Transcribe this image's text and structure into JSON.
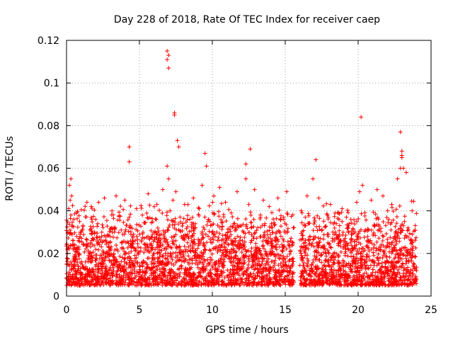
{
  "chart_data": {
    "type": "scatter",
    "title": "Day 228 of 2018, Rate Of TEC Index for receiver caep",
    "xlabel": "GPS time / hours",
    "ylabel": "ROTI / TECUs",
    "xlim": [
      0,
      25
    ],
    "ylim": [
      0,
      0.12
    ],
    "x_ticks": [
      0,
      5,
      10,
      15,
      20,
      25
    ],
    "x_tick_labels": [
      "0",
      "5",
      "10",
      "15",
      "20",
      "25"
    ],
    "y_ticks": [
      0,
      0.02,
      0.04,
      0.06,
      0.08,
      0.1,
      0.12
    ],
    "y_tick_labels": [
      "0",
      "0.02",
      "0.04",
      "0.06",
      "0.08",
      "0.1",
      "0.12"
    ],
    "grid": true,
    "marker": "+",
    "colors": {
      "points": "#ff0000",
      "grid": "#a0a0a0",
      "axis": "#000000"
    },
    "series": [
      {
        "name": "ROTI",
        "description_bands": [
          {
            "x_range": [
              0,
              15.6
            ],
            "typical_y": [
              0.005,
              0.045
            ]
          },
          {
            "x_range": [
              16.0,
              24.0
            ],
            "typical_y": [
              0.005,
              0.045
            ]
          }
        ],
        "x": [
          0.0,
          0.05,
          0.1,
          0.15,
          0.2,
          0.25,
          0.3,
          0.35,
          0.4,
          0.45,
          0.5,
          0.6,
          0.7,
          0.8,
          0.9,
          1.0,
          1.1,
          1.2,
          1.3,
          1.4,
          1.5,
          1.6,
          1.7,
          1.8,
          1.9,
          2.0,
          2.2,
          2.4,
          2.6,
          2.8,
          3.0,
          3.2,
          3.4,
          3.6,
          3.8,
          4.0,
          4.2,
          4.3,
          4.4,
          4.6,
          4.8,
          5.0,
          5.2,
          5.4,
          5.6,
          5.8,
          6.0,
          6.2,
          6.4,
          6.6,
          6.8,
          6.9,
          7.0,
          7.1,
          7.3,
          7.4,
          7.5,
          7.7,
          7.9,
          8.1,
          8.3,
          8.5,
          8.7,
          8.9,
          9.1,
          9.3,
          9.5,
          9.7,
          9.9,
          10.1,
          10.3,
          10.5,
          10.7,
          10.9,
          11.1,
          11.3,
          11.5,
          11.7,
          11.9,
          12.1,
          12.3,
          12.5,
          12.7,
          12.9,
          13.1,
          13.3,
          13.5,
          13.7,
          13.9,
          14.1,
          14.3,
          14.5,
          14.7,
          14.9,
          15.1,
          15.3,
          15.5,
          16.1,
          16.3,
          16.5,
          16.7,
          16.9,
          17.1,
          17.3,
          17.5,
          17.7,
          17.9,
          18.1,
          18.3,
          18.5,
          18.7,
          18.9,
          19.1,
          19.3,
          19.5,
          19.7,
          19.9,
          20.1,
          20.2,
          20.3,
          20.5,
          20.7,
          20.9,
          21.1,
          21.3,
          21.5,
          21.7,
          21.9,
          22.1,
          22.3,
          22.5,
          22.7,
          22.9,
          23.0,
          23.1,
          23.3,
          23.5,
          23.7,
          23.9,
          4.3,
          4.3,
          6.9,
          6.9,
          7.0,
          7.0,
          7.4,
          7.4,
          7.7,
          7.6,
          9.5,
          9.6,
          12.6,
          12.3,
          17.1,
          20.2,
          22.9,
          23.0,
          23.0,
          23.1,
          0.3,
          0.9,
          2.1,
          3.5,
          5.9,
          6.7,
          8.4,
          10.4,
          11.8,
          13.9,
          14.8,
          17.0,
          18.8,
          20.5,
          21.4,
          22.6,
          23.6
        ],
        "y": [
          0.015,
          0.022,
          0.03,
          0.041,
          0.052,
          0.045,
          0.038,
          0.047,
          0.033,
          0.026,
          0.036,
          0.021,
          0.028,
          0.012,
          0.035,
          0.03,
          0.008,
          0.024,
          0.016,
          0.044,
          0.019,
          0.01,
          0.042,
          0.027,
          0.009,
          0.036,
          0.044,
          0.013,
          0.046,
          0.02,
          0.007,
          0.032,
          0.047,
          0.015,
          0.025,
          0.045,
          0.018,
          0.037,
          0.011,
          0.029,
          0.041,
          0.014,
          0.038,
          0.022,
          0.048,
          0.012,
          0.03,
          0.043,
          0.016,
          0.05,
          0.02,
          0.061,
          0.055,
          0.04,
          0.045,
          0.028,
          0.049,
          0.031,
          0.013,
          0.043,
          0.025,
          0.01,
          0.046,
          0.018,
          0.041,
          0.052,
          0.022,
          0.035,
          0.009,
          0.047,
          0.03,
          0.051,
          0.014,
          0.044,
          0.027,
          0.039,
          0.012,
          0.049,
          0.033,
          0.018,
          0.055,
          0.043,
          0.026,
          0.05,
          0.011,
          0.038,
          0.045,
          0.02,
          0.042,
          0.032,
          0.008,
          0.046,
          0.019,
          0.036,
          0.049,
          0.023,
          0.015,
          0.04,
          0.012,
          0.047,
          0.028,
          0.055,
          0.018,
          0.046,
          0.031,
          0.01,
          0.038,
          0.043,
          0.02,
          0.034,
          0.014,
          0.041,
          0.027,
          0.009,
          0.036,
          0.022,
          0.044,
          0.049,
          0.017,
          0.052,
          0.031,
          0.013,
          0.045,
          0.024,
          0.05,
          0.018,
          0.047,
          0.011,
          0.036,
          0.043,
          0.028,
          0.055,
          0.06,
          0.065,
          0.033,
          0.058,
          0.02,
          0.04,
          0.031,
          0.07,
          0.063,
          0.115,
          0.111,
          0.107,
          0.113,
          0.086,
          0.085,
          0.07,
          0.073,
          0.067,
          0.061,
          0.069,
          0.062,
          0.064,
          0.084,
          0.077,
          0.068,
          0.066,
          0.06,
          0.055,
          0.005,
          0.007,
          0.006,
          0.008,
          0.006,
          0.009,
          0.007,
          0.006,
          0.008,
          0.007,
          0.005,
          0.009,
          0.006,
          0.008,
          0.007,
          0.006
        ]
      }
    ]
  }
}
